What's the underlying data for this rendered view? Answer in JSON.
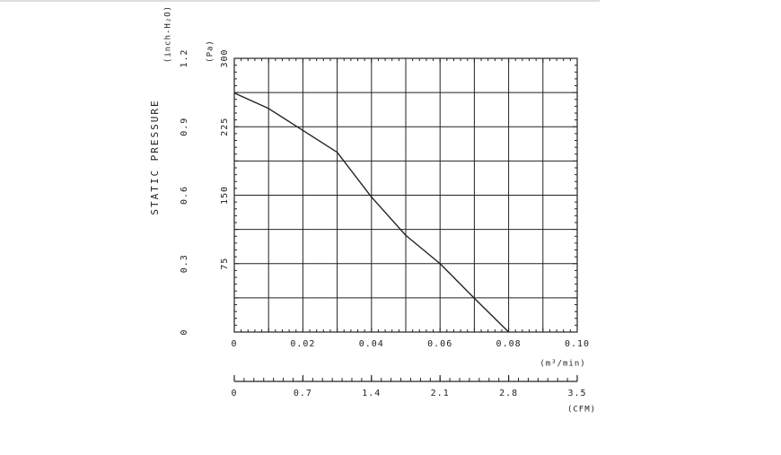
{
  "chart_data": {
    "type": "line",
    "y_label": "STATIC PRESSURE",
    "y_unit": "(Pa)",
    "y2_unit": "(inch-H₂O)",
    "x_unit": "(m³/min)",
    "x2_unit": "(CFM)",
    "x": [
      0,
      0.01,
      0.02,
      0.03,
      0.04,
      0.05,
      0.06,
      0.07,
      0.08
    ],
    "series": [
      {
        "color": "#222222",
        "values": [
          262,
          245,
          221,
          197,
          148,
          106,
          75,
          37,
          0
        ]
      }
    ],
    "xlim": [
      0,
      0.1
    ],
    "xticks": [
      0,
      0.02,
      0.04,
      0.06,
      0.08,
      {
        "value": 0.1,
        "label": "0.10"
      }
    ],
    "ylim": [
      0,
      300
    ],
    "yticks": [
      75,
      150,
      225,
      300
    ],
    "y2lim": [
      0,
      1.2
    ],
    "y2ticks": [
      0,
      0.3,
      0.6,
      0.9,
      1.2
    ],
    "x2lim": [
      0,
      3.5
    ],
    "x2ticks": [
      0,
      0.7,
      1.4,
      2.1,
      2.8,
      3.5
    ],
    "grid": true
  }
}
